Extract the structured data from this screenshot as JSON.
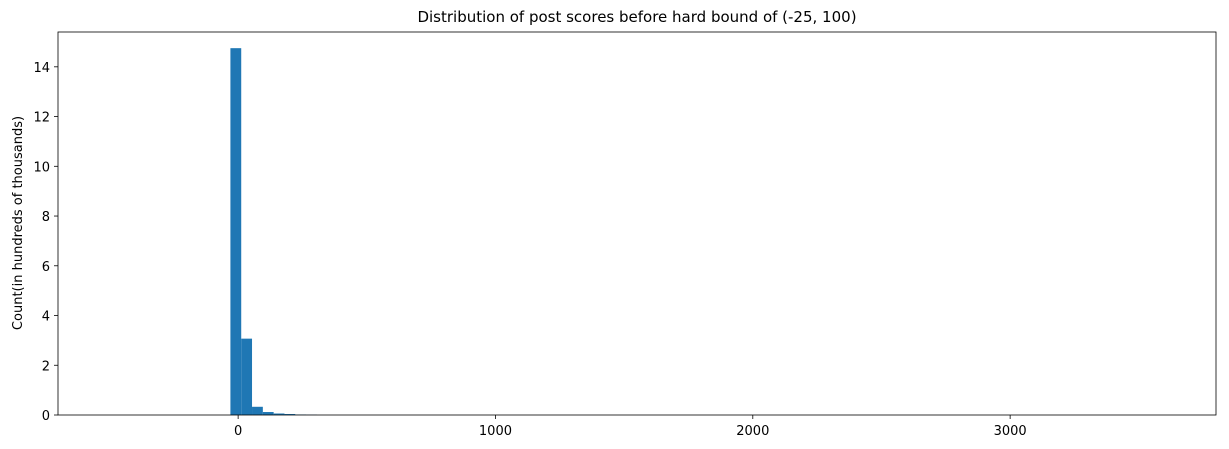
{
  "chart_data": {
    "type": "bar",
    "title": "Distribution of post scores before hard bound of (-25, 100)",
    "xlabel": "",
    "ylabel": "Count(in hundreds of thousands)",
    "xlim": [
      -700,
      3800
    ],
    "ylim": [
      0,
      15.4
    ],
    "xticks": [
      0,
      1000,
      2000,
      3000
    ],
    "xtick_labels": [
      "0",
      "1000",
      "2000",
      "3000"
    ],
    "yticks": [
      0,
      2,
      4,
      6,
      8,
      10,
      12,
      14
    ],
    "ytick_labels": [
      "0",
      "2",
      "4",
      "6",
      "8",
      "10",
      "12",
      "14"
    ],
    "bar_color": "#1f77b4",
    "grid": false,
    "bins": [
      {
        "x0": -30,
        "x1": 12,
        "value": 14.75
      },
      {
        "x0": 12,
        "x1": 54,
        "value": 3.07
      },
      {
        "x0": 54,
        "x1": 96,
        "value": 0.33
      },
      {
        "x0": 96,
        "x1": 138,
        "value": 0.12
      },
      {
        "x0": 138,
        "x1": 180,
        "value": 0.06
      },
      {
        "x0": 180,
        "x1": 222,
        "value": 0.04
      },
      {
        "x0": 222,
        "x1": 264,
        "value": 0.02
      },
      {
        "x0": 264,
        "x1": 306,
        "value": 0.01
      }
    ]
  }
}
